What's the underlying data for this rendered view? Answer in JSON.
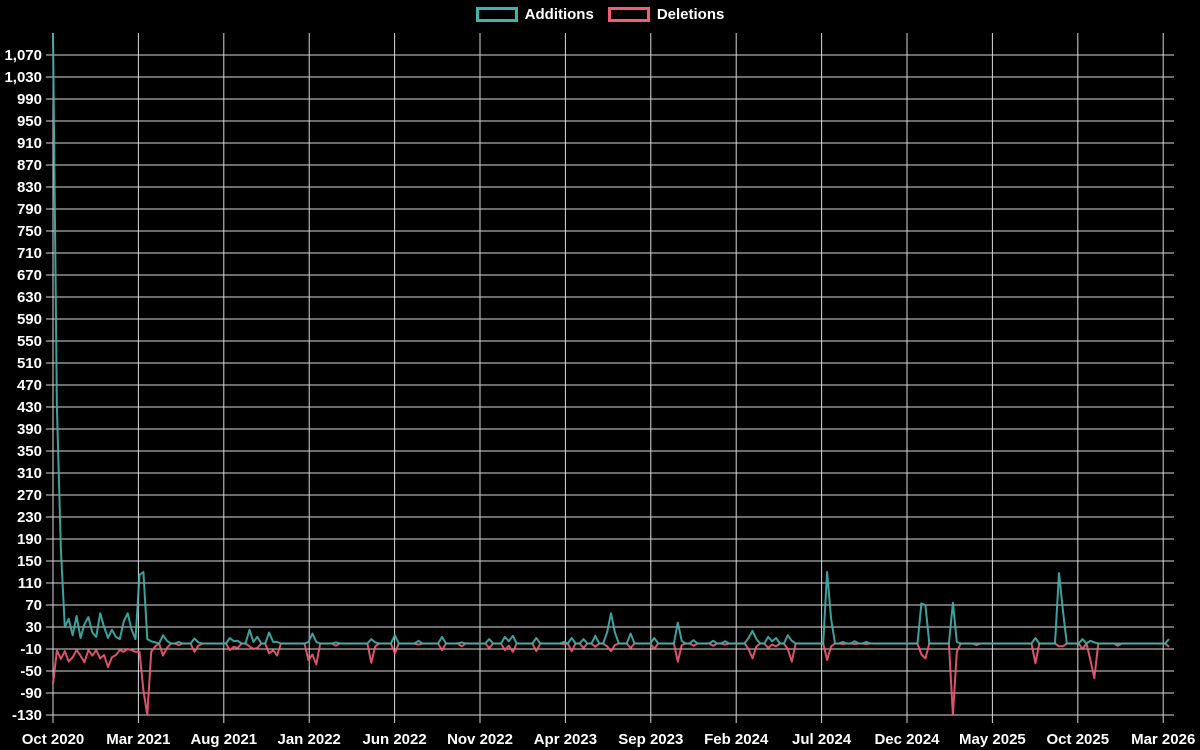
{
  "legend": {
    "additions_label": "Additions",
    "deletions_label": "Deletions"
  },
  "colors": {
    "background": "#000000",
    "grid": "#d8d8d8",
    "text": "#ffffff",
    "additions": "#40b3ad",
    "deletions": "#f25c78"
  },
  "chart_data": {
    "type": "line",
    "title": "",
    "xlabel": "",
    "ylabel": "",
    "grid": true,
    "legend_position": "top-center",
    "x_unit": "week",
    "x_start": "Oct 2020",
    "x_end": "Mar 2026",
    "weeks_total": 285,
    "ylim": [
      -130,
      1110
    ],
    "x_tick_labels": [
      "Oct 2020",
      "Mar 2021",
      "Aug 2021",
      "Jan 2022",
      "Jun 2022",
      "Nov 2022",
      "Apr 2023",
      "Sep 2023",
      "Feb 2024",
      "Jul 2024",
      "Dec 2024",
      "May 2025",
      "Oct 2025",
      "Mar 2026"
    ],
    "y_tick_values": [
      -130,
      -90,
      -50,
      -10,
      30,
      70,
      110,
      150,
      190,
      230,
      270,
      310,
      350,
      390,
      430,
      470,
      510,
      550,
      590,
      630,
      670,
      710,
      750,
      790,
      830,
      870,
      910,
      950,
      990,
      1030,
      1070
    ],
    "y_tick_labels": [
      "-130",
      "-90",
      "-50",
      "-10",
      "30",
      "70",
      "110",
      "150",
      "190",
      "230",
      "270",
      "310",
      "350",
      "390",
      "430",
      "470",
      "510",
      "550",
      "590",
      "630",
      "670",
      "710",
      "750",
      "790",
      "830",
      "870",
      "910",
      "950",
      "990",
      "1,030",
      "1,070"
    ],
    "series_order": [
      "Additions",
      "Deletions"
    ],
    "series_note": "sparse_weekly_points maps week-index -> [additions, deletions]; all unlisted weeks are [0, 0]; first week spike exceeds the visible axis (clipped at top)",
    "sparse_weekly_points": {
      "0": [
        1110,
        -73
      ],
      "1": [
        430,
        -13
      ],
      "2": [
        170,
        -28
      ],
      "3": [
        30,
        -14
      ],
      "4": [
        45,
        -33
      ],
      "5": [
        15,
        -25
      ],
      "6": [
        50,
        -12
      ],
      "7": [
        10,
        -22
      ],
      "8": [
        35,
        -34
      ],
      "9": [
        48,
        -12
      ],
      "10": [
        20,
        -22
      ],
      "11": [
        12,
        -12
      ],
      "12": [
        55,
        -27
      ],
      "13": [
        30,
        -21
      ],
      "14": [
        10,
        -43
      ],
      "15": [
        25,
        -25
      ],
      "16": [
        12,
        -21
      ],
      "17": [
        8,
        -12
      ],
      "18": [
        40,
        -15
      ],
      "19": [
        55,
        -10
      ],
      "20": [
        25,
        -12
      ],
      "21": [
        8,
        -15
      ],
      "22": [
        125,
        -15
      ],
      "23": [
        130,
        -85
      ],
      "24": [
        8,
        -130
      ],
      "25": [
        4,
        -15
      ],
      "26": [
        2,
        -5
      ],
      "28": [
        15,
        -22
      ],
      "29": [
        5,
        -8
      ],
      "32": [
        3,
        -3
      ],
      "36": [
        9,
        -15
      ],
      "37": [
        2,
        -4
      ],
      "45": [
        10,
        -12
      ],
      "46": [
        4,
        -6
      ],
      "47": [
        5,
        -8
      ],
      "50": [
        25,
        -5
      ],
      "51": [
        3,
        -10
      ],
      "52": [
        12,
        -8
      ],
      "55": [
        20,
        -18
      ],
      "56": [
        3,
        -12
      ],
      "57": [
        3,
        -22
      ],
      "65": [
        3,
        -30
      ],
      "66": [
        18,
        -20
      ],
      "67": [
        3,
        -38
      ],
      "72": [
        2,
        -4
      ],
      "81": [
        8,
        -35
      ],
      "82": [
        2,
        -5
      ],
      "87": [
        15,
        -18
      ],
      "93": [
        5,
        -2
      ],
      "99": [
        12,
        -12
      ],
      "104": [
        2,
        -5
      ],
      "111": [
        8,
        -8
      ],
      "115": [
        12,
        -12
      ],
      "116": [
        4,
        -4
      ],
      "117": [
        14,
        -15
      ],
      "123": [
        10,
        -14
      ],
      "130": [
        3,
        -1
      ],
      "132": [
        10,
        -14
      ],
      "135": [
        8,
        -8
      ],
      "138": [
        14,
        -6
      ],
      "141": [
        20,
        -5
      ],
      "142": [
        55,
        -14
      ],
      "143": [
        20,
        -3
      ],
      "147": [
        18,
        -8
      ],
      "153": [
        10,
        -10
      ],
      "159": [
        38,
        -33
      ],
      "160": [
        5,
        -3
      ],
      "163": [
        6,
        -4
      ],
      "168": [
        5,
        -4
      ],
      "171": [
        4,
        -2
      ],
      "177": [
        10,
        -10
      ],
      "178": [
        23,
        -27
      ],
      "179": [
        8,
        -5
      ],
      "182": [
        12,
        -8
      ],
      "183": [
        4,
        -2
      ],
      "184": [
        10,
        -5
      ],
      "187": [
        15,
        -10
      ],
      "188": [
        5,
        -33
      ],
      "197": [
        130,
        -30
      ],
      "198": [
        45,
        -5
      ],
      "201": [
        3,
        -1
      ],
      "204": [
        4,
        -1
      ],
      "207": [
        3,
        -1
      ],
      "221": [
        73,
        -20
      ],
      "222": [
        70,
        -27
      ],
      "229": [
        74,
        -130
      ],
      "230": [
        3,
        -15
      ],
      "235": [
        0,
        -3
      ],
      "250": [
        10,
        -36
      ],
      "256": [
        128,
        -5
      ],
      "257": [
        60,
        -5
      ],
      "262": [
        8,
        -10
      ],
      "264": [
        5,
        -30
      ],
      "265": [
        2,
        -63
      ],
      "271": [
        0,
        -4
      ],
      "284": [
        8,
        -6
      ]
    }
  }
}
